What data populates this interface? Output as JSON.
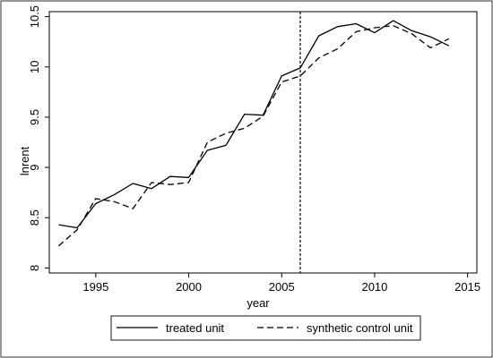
{
  "chart_data": {
    "type": "line",
    "title": "",
    "xlabel": "year",
    "ylabel": "lnrent",
    "xlim": [
      1992.5,
      2015.5
    ],
    "ylim": [
      7.95,
      10.55
    ],
    "x_ticks": [
      1995,
      2000,
      2005,
      2010,
      2015
    ],
    "x_tick_labels": [
      "1995",
      "2000",
      "2005",
      "2010",
      "2015"
    ],
    "y_ticks": [
      8,
      8.5,
      9,
      9.5,
      10,
      10.5
    ],
    "y_tick_labels": [
      "8",
      "8.5",
      "9",
      "9.5",
      "10",
      "10.5"
    ],
    "grid": false,
    "legend_position": "bottom",
    "reference_line": {
      "x": 2006,
      "style": "dotted"
    },
    "x": [
      1993,
      1994,
      1995,
      1996,
      1997,
      1998,
      1999,
      2000,
      2001,
      2002,
      2003,
      2004,
      2005,
      2006,
      2007,
      2008,
      2009,
      2010,
      2011,
      2012,
      2013,
      2014
    ],
    "series": [
      {
        "name": "treated unit",
        "line_style": "solid",
        "values": [
          8.43,
          8.4,
          8.64,
          8.73,
          8.84,
          8.79,
          8.91,
          8.9,
          9.17,
          9.22,
          9.53,
          9.52,
          9.91,
          9.99,
          10.31,
          10.4,
          10.43,
          10.34,
          10.46,
          10.36,
          10.3,
          10.21
        ]
      },
      {
        "name": "synthetic control unit",
        "line_style": "dashed",
        "values": [
          8.22,
          8.38,
          8.69,
          8.66,
          8.59,
          8.85,
          8.83,
          8.85,
          9.25,
          9.34,
          9.39,
          9.51,
          9.85,
          9.91,
          10.09,
          10.18,
          10.35,
          10.39,
          10.41,
          10.33,
          10.19,
          10.28
        ]
      }
    ]
  }
}
